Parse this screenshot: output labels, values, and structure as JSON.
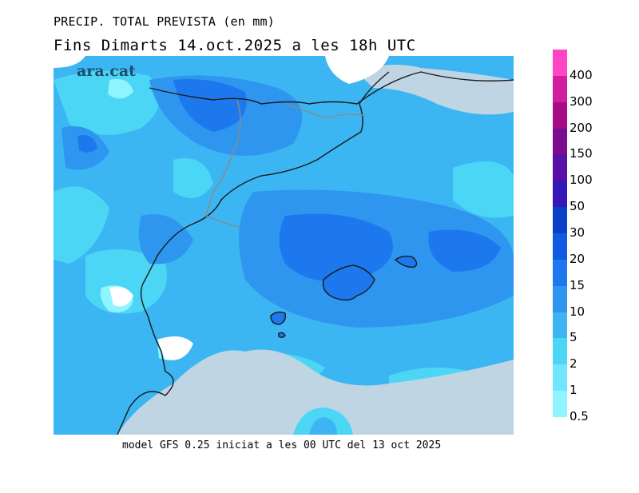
{
  "header": {
    "title": "PRECIP. TOTAL PREVISTA (en mm)",
    "subtitle": "Fins Dimarts    14.oct.2025 a les 18h UTC"
  },
  "logo_text": "ara.cat",
  "footer": "model GFS 0.25 iniciat a les 00 UTC del 13 oct 2025",
  "legend": {
    "labels": [
      "0.5",
      "1",
      "2",
      "5",
      "10",
      "15",
      "20",
      "30",
      "50",
      "100",
      "150",
      "200",
      "300",
      "400"
    ],
    "colors": [
      "#8ef4ff",
      "#6fe6fb",
      "#4cd6f5",
      "#3fb4f4",
      "#2f96f0",
      "#1d78ee",
      "#0f5be4",
      "#0840c8",
      "#3418b8",
      "#5a10a8",
      "#7a0c90",
      "#a60c88",
      "#d11e9e",
      "#ff44c4"
    ]
  },
  "map": {
    "sea_color": "#3bb6f3",
    "land_outside_color": "#bfd5e4",
    "boundary_color": "#1a1a1a",
    "border_color": "#8a8a8a"
  }
}
